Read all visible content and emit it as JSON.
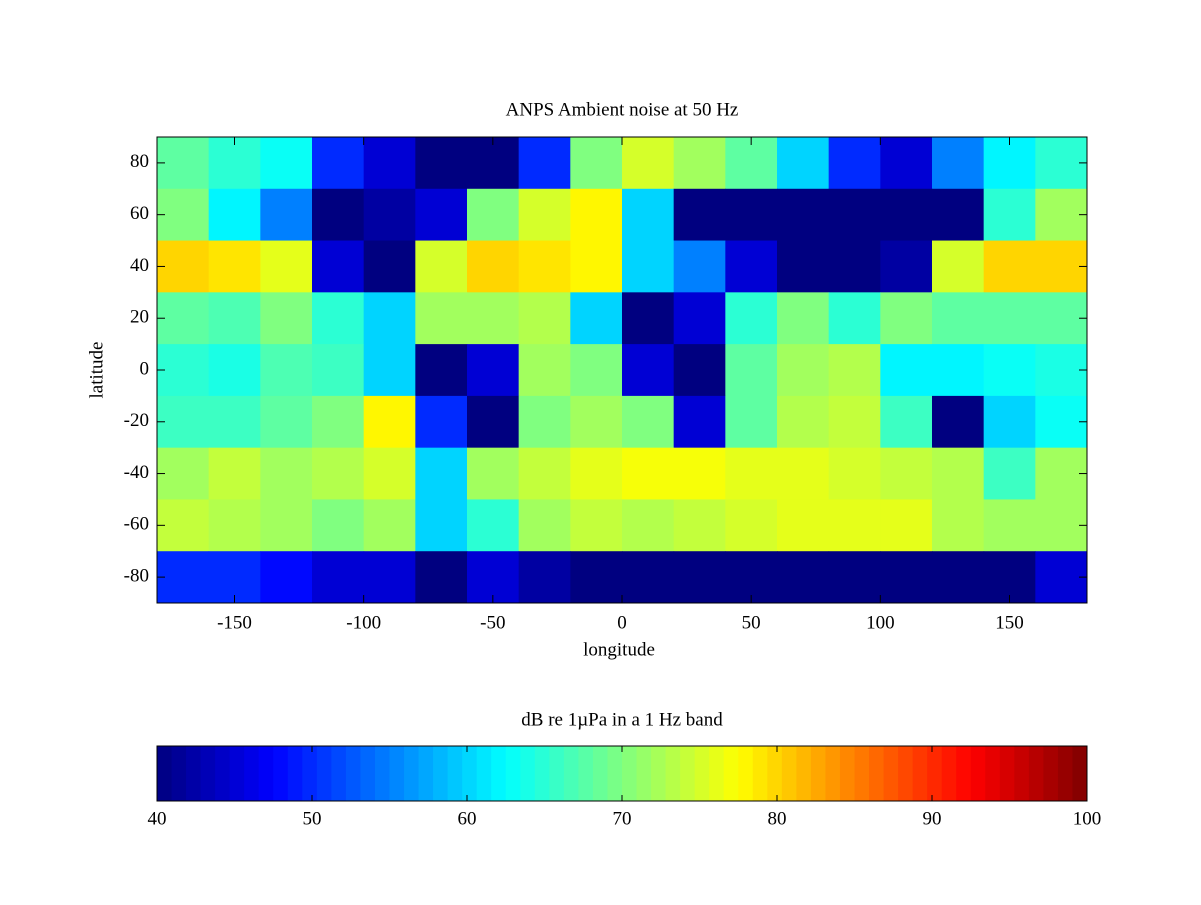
{
  "chart_data": {
    "type": "heatmap",
    "title": "ANPS Ambient noise at 50 Hz",
    "xlabel": "longitude",
    "ylabel": "latitude",
    "x": [
      -170,
      -150,
      -130,
      -110,
      -90,
      -70,
      -50,
      -30,
      -10,
      10,
      30,
      50,
      70,
      90,
      110,
      130,
      150,
      170
    ],
    "y": [
      80,
      60,
      40,
      20,
      0,
      -20,
      -40,
      -60,
      -80
    ],
    "values": [
      [
        68,
        65,
        63,
        50,
        45,
        40,
        40,
        50,
        70,
        75,
        72,
        68,
        60,
        50,
        45,
        55,
        62,
        65
      ],
      [
        70,
        62,
        55,
        40,
        42,
        45,
        70,
        75,
        78,
        60,
        40,
        40,
        40,
        40,
        40,
        40,
        65,
        72
      ],
      [
        80,
        79,
        76,
        45,
        40,
        75,
        80,
        79,
        78,
        60,
        55,
        45,
        40,
        40,
        42,
        75,
        80,
        80
      ],
      [
        68,
        67,
        70,
        65,
        60,
        72,
        72,
        73,
        60,
        40,
        45,
        65,
        70,
        65,
        70,
        68,
        68,
        68
      ],
      [
        65,
        64,
        67,
        66,
        60,
        40,
        45,
        72,
        70,
        45,
        40,
        68,
        72,
        73,
        62,
        62,
        63,
        64
      ],
      [
        66,
        66,
        68,
        70,
        78,
        50,
        40,
        70,
        72,
        70,
        45,
        68,
        73,
        74,
        66,
        40,
        60,
        63
      ],
      [
        72,
        74,
        72,
        73,
        75,
        60,
        72,
        74,
        76,
        77,
        77,
        76,
        76,
        75,
        74,
        73,
        66,
        72
      ],
      [
        74,
        73,
        72,
        70,
        72,
        60,
        65,
        72,
        74,
        73,
        74,
        75,
        76,
        76,
        76,
        73,
        72,
        72
      ],
      [
        50,
        50,
        48,
        45,
        45,
        40,
        45,
        42,
        40,
        40,
        40,
        40,
        40,
        40,
        40,
        40,
        40,
        45
      ]
    ],
    "xlim": [
      -180,
      180
    ],
    "ylim": [
      -90,
      90
    ],
    "xticks": [
      -150,
      -100,
      -50,
      0,
      50,
      100,
      150
    ],
    "yticks": [
      -80,
      -60,
      -40,
      -20,
      0,
      20,
      40,
      60,
      80
    ],
    "colormap": "jet",
    "colorbar": {
      "label": "dB re 1µPa in a 1 Hz band",
      "clim": [
        40,
        100
      ],
      "ticks": [
        40,
        50,
        60,
        70,
        80,
        90,
        100
      ]
    }
  }
}
